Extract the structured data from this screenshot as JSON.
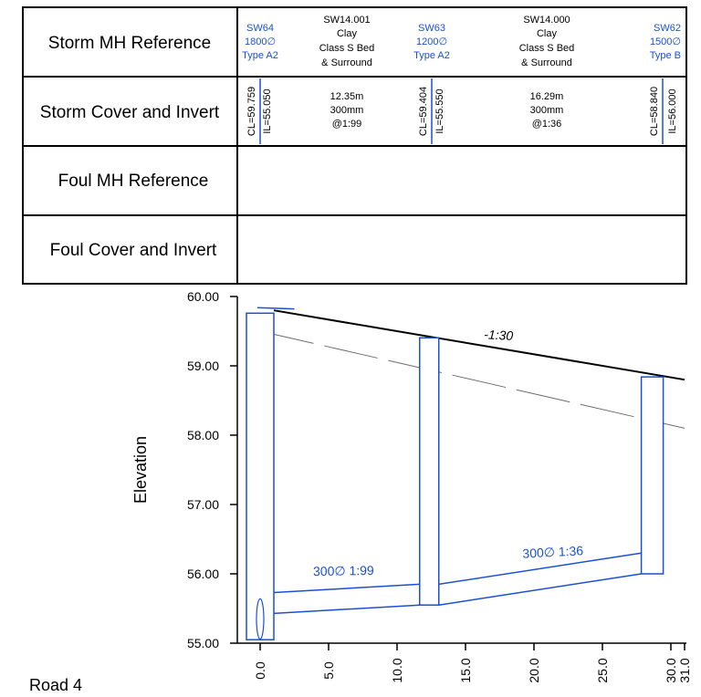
{
  "table": {
    "row_labels": [
      "Storm MH Reference",
      "Storm Cover and Invert",
      "Foul MH Reference",
      "Foul Cover and Invert"
    ],
    "manholes": [
      {
        "lines": [
          "SW64",
          "1800∅",
          "Type A2"
        ],
        "cl": "CL=59.759",
        "il": "IL=55.050"
      },
      {
        "lines": [
          "SW63",
          "1200∅",
          "Type A2"
        ],
        "cl": "CL=59.404",
        "il": "IL=55.550"
      },
      {
        "lines": [
          "SW62",
          "1500∅",
          "Type B"
        ],
        "cl": "CL=58.840",
        "il": "IL=56.000"
      }
    ],
    "pipes": [
      {
        "ref": [
          "SW14.001",
          "Clay",
          "Class S Bed",
          "& Surround"
        ],
        "details": [
          "12.35m",
          "300mm",
          "@1:99"
        ]
      },
      {
        "ref": [
          "SW14.000",
          "Clay",
          "Class S Bed",
          "& Surround"
        ],
        "details": [
          "16.29m",
          "300mm",
          "@1:36"
        ]
      }
    ]
  },
  "chart_data": {
    "type": "line",
    "ylabel": "Elevation",
    "xlabel": "",
    "y_ticks": [
      "60.00",
      "59.00",
      "58.00",
      "57.00",
      "56.00",
      "55.00"
    ],
    "x_ticks": [
      "0.0",
      "5.0",
      "10.0",
      "15.0",
      "20.0",
      "25.0",
      "30.0",
      "31.0"
    ],
    "xlim": [
      0,
      31
    ],
    "ylim": [
      55,
      60
    ],
    "ground_level": {
      "x": [
        1.0,
        31.0
      ],
      "y": [
        59.8,
        58.8
      ]
    },
    "existing_ground": {
      "x": [
        0.0,
        31.0
      ],
      "y": [
        59.5,
        58.1
      ]
    },
    "manholes": [
      {
        "name": "SW64",
        "x": 0.0,
        "cover": 59.759,
        "invert": 55.05
      },
      {
        "name": "SW63",
        "x": 12.35,
        "cover": 59.404,
        "invert": 55.55
      },
      {
        "name": "SW62",
        "x": 28.64,
        "cover": 58.84,
        "invert": 56.0
      }
    ],
    "pipes": [
      {
        "label": "300∅ 1:99",
        "from_x": 0.0,
        "to_x": 12.35,
        "invert_start": 55.43,
        "invert_end": 55.55,
        "soffit_start": 55.73,
        "soffit_end": 55.85
      },
      {
        "label": "300∅ 1:36",
        "from_x": 12.35,
        "to_x": 28.64,
        "invert_start": 55.55,
        "invert_end": 56.0,
        "soffit_start": 55.85,
        "soffit_end": 56.3
      }
    ],
    "annotation": "-1:30"
  },
  "footer": {
    "road_label": "Road 4"
  },
  "colors": {
    "pipe": "#1a4fd6",
    "ground": "#000000",
    "existing": "#6e6e6e"
  }
}
